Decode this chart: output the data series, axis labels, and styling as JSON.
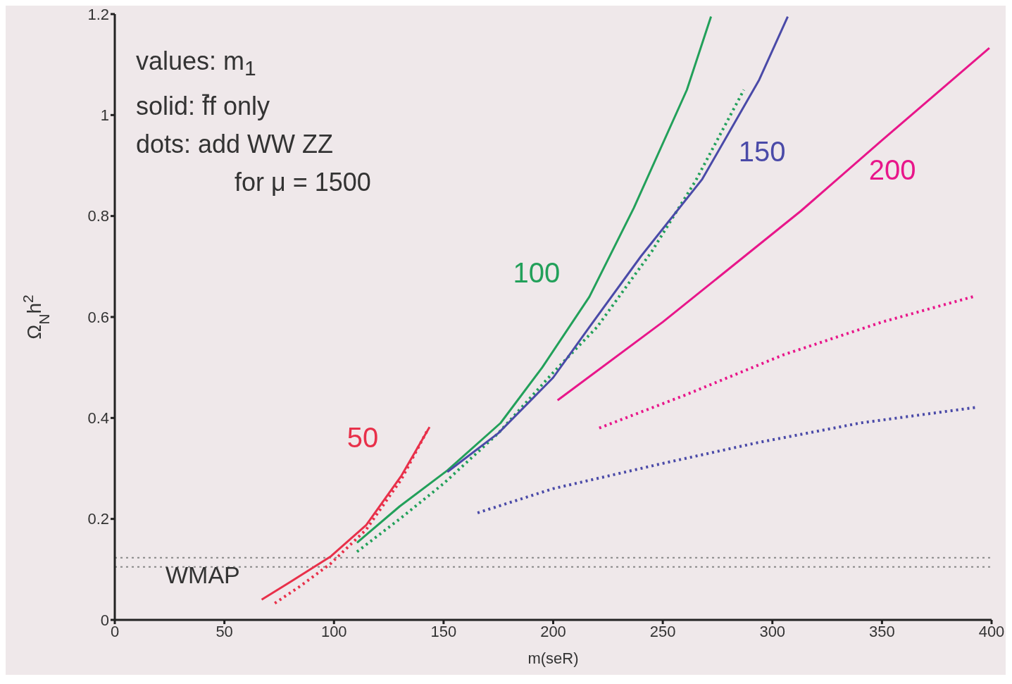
{
  "chart_data": {
    "type": "line",
    "xlabel": "m(seR)",
    "ylabel": "Ω$_{N}$h$^{2}$",
    "xlim": [
      0,
      400
    ],
    "xticks": [
      0,
      50,
      100,
      150,
      200,
      250,
      300,
      350,
      400
    ],
    "ylim": [
      0,
      1.2
    ],
    "yticks": [
      0,
      0.2,
      0.4,
      0.6,
      0.8,
      1,
      1.2
    ],
    "grid": false,
    "legend": false,
    "marker": "none",
    "annotations": [
      "values: m$_{1}$",
      "solid:  f̄f only",
      "dots: add WW ZZ",
      "for  μ = 1500"
    ],
    "ref_lines": [
      {
        "axis": "y",
        "value": 0.123,
        "label": "WMAP",
        "color": "#888888",
        "line_style": "dotted"
      },
      {
        "axis": "y",
        "value": 0.105,
        "color": "#888888",
        "line_style": "dotted"
      }
    ],
    "series": [
      {
        "name": "50",
        "color": "#e8304a",
        "line_style": "solid",
        "x": [
          67,
          80,
          98.6,
          114.7,
          130.8,
          143.6
        ],
        "values": [
          0.04,
          0.075,
          0.126,
          0.188,
          0.286,
          0.382
        ]
      },
      {
        "color": "#e8304a",
        "line_style": "dotted",
        "x": [
          73,
          85,
          98.6,
          114.7,
          130.8,
          142.3
        ],
        "values": [
          0.033,
          0.068,
          0.112,
          0.179,
          0.279,
          0.373
        ]
      },
      {
        "name": "100",
        "color": "#22a05a",
        "line_style": "solid",
        "x": [
          110.5,
          130,
          151.7,
          176,
          195,
          216.5,
          236.8,
          261,
          272
        ],
        "values": [
          0.153,
          0.225,
          0.296,
          0.39,
          0.5,
          0.64,
          0.816,
          1.05,
          1.195
        ]
      },
      {
        "color": "#22a05a",
        "line_style": "dotted",
        "x": [
          110.5,
          130,
          150,
          175,
          200,
          220,
          245,
          265,
          287
        ],
        "values": [
          0.135,
          0.2,
          0.27,
          0.37,
          0.49,
          0.58,
          0.73,
          0.87,
          1.05
        ]
      },
      {
        "name": "150",
        "color": "#4a4aa8",
        "line_style": "solid",
        "x": [
          151.7,
          175,
          200,
          216.5,
          240,
          268,
          294,
          307
        ],
        "values": [
          0.293,
          0.37,
          0.48,
          0.58,
          0.72,
          0.873,
          1.07,
          1.195
        ]
      },
      {
        "color": "#4a4aa8",
        "line_style": "dotted",
        "x": [
          165.5,
          200,
          250,
          292,
          340,
          393
        ],
        "values": [
          0.212,
          0.26,
          0.31,
          0.35,
          0.39,
          0.421
        ]
      },
      {
        "name": "200",
        "color": "#e8168a",
        "line_style": "solid",
        "x": [
          202,
          250,
          313,
          350,
          399
        ],
        "values": [
          0.435,
          0.59,
          0.81,
          0.95,
          1.133
        ]
      },
      {
        "color": "#e8168a",
        "line_style": "dotted",
        "x": [
          221,
          260,
          305,
          350,
          393
        ],
        "values": [
          0.38,
          0.445,
          0.525,
          0.59,
          0.642
        ]
      }
    ]
  }
}
